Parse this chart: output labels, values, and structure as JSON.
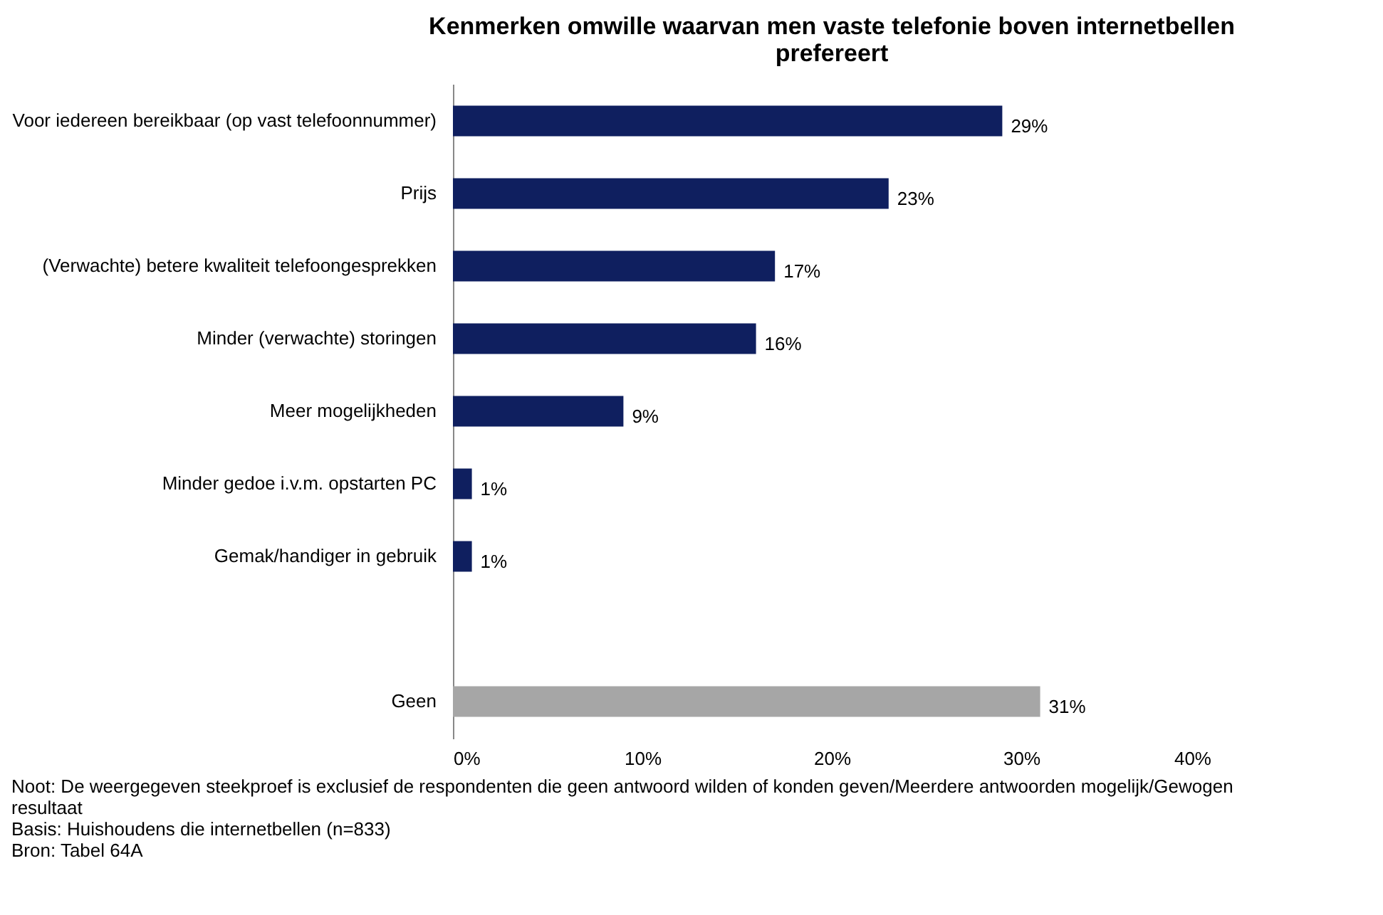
{
  "chart_data": {
    "type": "bar",
    "orientation": "horizontal",
    "title": "Kenmerken omwille waarvan men vaste telefonie boven internetbellen prefereert",
    "categories": [
      "Voor iedereen bereikbaar (op vast telefoonnummer)",
      "Prijs",
      "(Verwachte) betere kwaliteit telefoongesprekken",
      "Minder (verwachte) storingen",
      "Meer mogelijkheden",
      "Minder gedoe i.v.m. opstarten PC",
      "Gemak/handiger in gebruik",
      null,
      "Geen"
    ],
    "values": [
      29,
      23,
      17,
      16,
      9,
      1,
      1,
      null,
      31
    ],
    "colors": [
      "#0f1f5f",
      "#0f1f5f",
      "#0f1f5f",
      "#0f1f5f",
      "#0f1f5f",
      "#0f1f5f",
      "#0f1f5f",
      "#0f1f5f",
      "#a6a6a6"
    ],
    "value_labels": [
      "29%",
      "23%",
      "17%",
      "16%",
      "9%",
      "1%",
      "1%",
      null,
      "31%"
    ],
    "xlim": [
      0,
      40
    ],
    "xticks": [
      {
        "value": 0,
        "label": "0%"
      },
      {
        "value": 10,
        "label": "10%"
      },
      {
        "value": 20,
        "label": "20%"
      },
      {
        "value": 30,
        "label": "30%"
      },
      {
        "value": 40,
        "label": "40%"
      }
    ],
    "grid": false,
    "annotations": [
      "Noot: De weergegeven steekproef is exclusief de respondenten die geen antwoord wilden of konden geven/Meerdere antwoorden mogelijk/Gewogen resultaat",
      "Basis: Huishoudens die internetbellen (n=833)",
      "Bron: Tabel 64A"
    ]
  }
}
